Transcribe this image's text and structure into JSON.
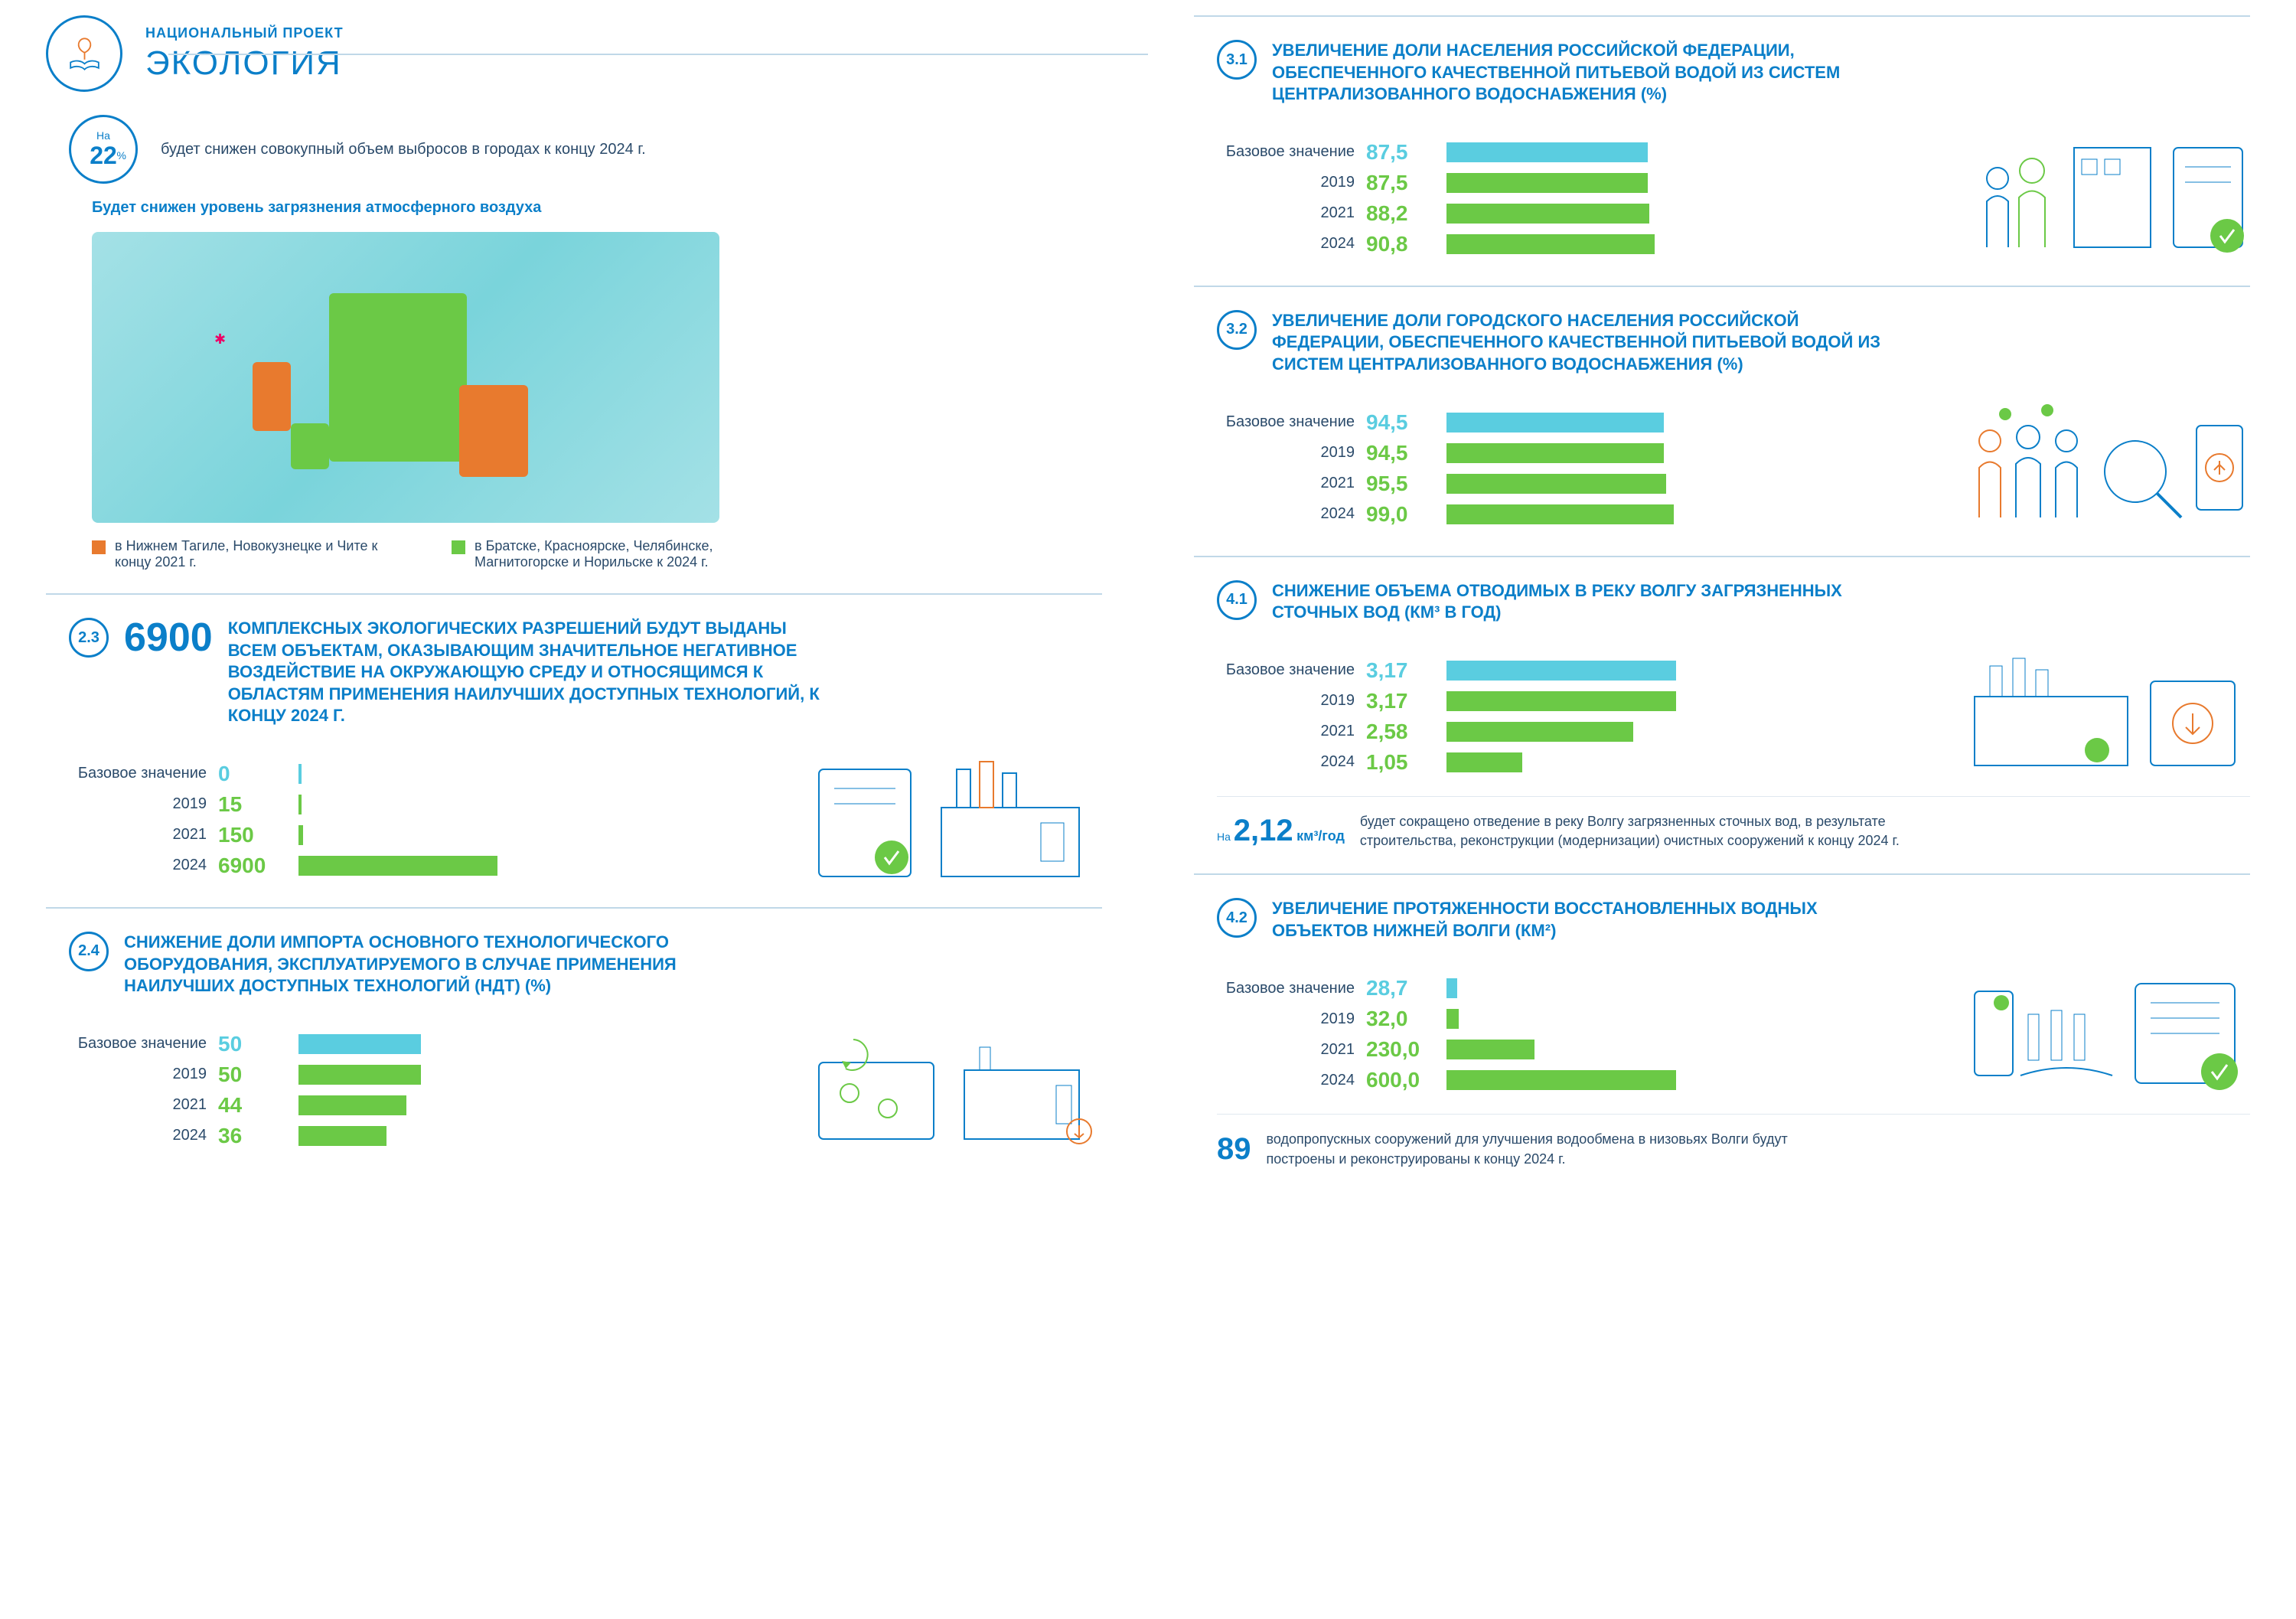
{
  "header": {
    "subtitle": "НАЦИОНАЛЬНЫЙ ПРОЕКТ",
    "title": "ЭКОЛОГИЯ"
  },
  "colors": {
    "blue": "#0b7fc9",
    "green": "#6bc946",
    "orange": "#e87a2e",
    "cyan": "#5acde0",
    "text": "#2a4a6a",
    "line": "#c0d8e8"
  },
  "hero": {
    "sup": "На",
    "value": "22",
    "unit": "%",
    "text": "будет снижен совокупный объем выбросов в городах к концу 2024 г."
  },
  "map": {
    "subtitle": "Будет снижен уровень загрязнения атмосферного воздуха",
    "legend": [
      {
        "color": "#e87a2e",
        "text": "в Нижнем Тагиле, Новокузнецке и Чите к концу 2021 г."
      },
      {
        "color": "#6bc946",
        "text": "в Братске, Красноярске, Челябинске, Магнитогорске и Норильске к 2024 г."
      }
    ]
  },
  "sections": [
    {
      "id": "2.3",
      "bignum": "6900",
      "title": "КОМПЛЕКСНЫХ ЭКОЛОГИЧЕСКИХ РАЗРЕШЕНИЙ БУДУТ ВЫДАНЫ ВСЕМ ОБЪЕКТАМ, ОКАЗЫВАЮЩИМ ЗНАЧИТЕЛЬНОЕ НЕГАТИВНОЕ ВОЗДЕЙСТВИЕ НА ОКРУЖАЮЩУЮ СРЕДУ И ОТНОСЯЩИМСЯ К ОБЛАСТЯМ ПРИМЕНЕНИЯ НАИЛУЧШИХ ДОСТУПНЫХ ТЕХНОЛОГИЙ, К КОНЦУ 2024 Г.",
      "bars": {
        "max": 6900,
        "track_w": 260,
        "rows": [
          {
            "label": "Базовое значение",
            "val": "0",
            "num": 0,
            "color": "#5acde0"
          },
          {
            "label": "2019",
            "val": "15",
            "num": 15,
            "color": "#6bc946"
          },
          {
            "label": "2021",
            "val": "150",
            "num": 150,
            "color": "#6bc946"
          },
          {
            "label": "2024",
            "val": "6900",
            "num": 6900,
            "color": "#6bc946"
          }
        ]
      },
      "illus": "factory"
    },
    {
      "id": "2.4",
      "title": "СНИЖЕНИЕ ДОЛИ ИМПОРТА ОСНОВНОГО ТЕХНОЛОГИЧЕСКОГО ОБОРУДОВАНИЯ, ЭКСПЛУАТИРУЕМОГО В СЛУЧАЕ ПРИМЕНЕНИЯ НАИЛУЧШИХ ДОСТУПНЫХ ТЕХНОЛОГИЙ (НДТ) (%)",
      "bars": {
        "max": 100,
        "track_w": 320,
        "rows": [
          {
            "label": "Базовое значение",
            "val": "50",
            "num": 50,
            "color": "#5acde0"
          },
          {
            "label": "2019",
            "val": "50",
            "num": 50,
            "color": "#6bc946"
          },
          {
            "label": "2021",
            "val": "44",
            "num": 44,
            "color": "#6bc946"
          },
          {
            "label": "2024",
            "val": "36",
            "num": 36,
            "color": "#6bc946"
          }
        ]
      },
      "illus": "recycle"
    },
    {
      "id": "3.1",
      "title": "УВЕЛИЧЕНИЕ ДОЛИ НАСЕЛЕНИЯ РОССИЙСКОЙ ФЕДЕРАЦИИ, ОБЕСПЕЧЕННОГО КАЧЕСТВЕННОЙ ПИТЬЕВОЙ ВОДОЙ ИЗ СИСТЕМ ЦЕНТРАЛИЗОВАННОГО ВОДОСНАБЖЕНИЯ (%)",
      "bars": {
        "max": 100,
        "track_w": 300,
        "rows": [
          {
            "label": "Базовое значение",
            "val": "87,5",
            "num": 87.5,
            "color": "#5acde0"
          },
          {
            "label": "2019",
            "val": "87,5",
            "num": 87.5,
            "color": "#6bc946"
          },
          {
            "label": "2021",
            "val": "88,2",
            "num": 88.2,
            "color": "#6bc946"
          },
          {
            "label": "2024",
            "val": "90,8",
            "num": 90.8,
            "color": "#6bc946"
          }
        ]
      },
      "illus": "family"
    },
    {
      "id": "3.2",
      "title": "УВЕЛИЧЕНИЕ ДОЛИ ГОРОДСКОГО НАСЕЛЕНИЯ РОССИЙСКОЙ ФЕДЕРАЦИИ, ОБЕСПЕЧЕННОГО КАЧЕСТВЕННОЙ ПИТЬЕВОЙ ВОДОЙ ИЗ СИСТЕМ ЦЕНТРАЛИЗОВАННОГО ВОДОСНАБЖЕНИЯ (%)",
      "bars": {
        "max": 100,
        "track_w": 300,
        "rows": [
          {
            "label": "Базовое значение",
            "val": "94,5",
            "num": 94.5,
            "color": "#5acde0"
          },
          {
            "label": "2019",
            "val": "94,5",
            "num": 94.5,
            "color": "#6bc946"
          },
          {
            "label": "2021",
            "val": "95,5",
            "num": 95.5,
            "color": "#6bc946"
          },
          {
            "label": "2024",
            "val": "99,0",
            "num": 99.0,
            "color": "#6bc946"
          }
        ]
      },
      "illus": "people"
    },
    {
      "id": "4.1",
      "title": "СНИЖЕНИЕ ОБЪЕМА ОТВОДИМЫХ В РЕКУ ВОЛГУ ЗАГРЯЗНЕННЫХ СТОЧНЫХ ВОД (КМ³ В ГОД)",
      "bars": {
        "max": 3.17,
        "track_w": 300,
        "rows": [
          {
            "label": "Базовое значение",
            "val": "3,17",
            "num": 3.17,
            "color": "#5acde0"
          },
          {
            "label": "2019",
            "val": "3,17",
            "num": 3.17,
            "color": "#6bc946"
          },
          {
            "label": "2021",
            "val": "2,58",
            "num": 2.58,
            "color": "#6bc946"
          },
          {
            "label": "2024",
            "val": "1,05",
            "num": 1.05,
            "color": "#6bc946"
          }
        ]
      },
      "illus": "plant",
      "callout": {
        "sup": "На",
        "num": "2,12",
        "unit": "км³/год",
        "text": "будет сокращено отведение в реку Волгу загрязненных сточных вод, в результате строительства, реконструкции (модернизации) очистных сооружений к концу 2024 г."
      }
    },
    {
      "id": "4.2",
      "title": "УВЕЛИЧЕНИЕ ПРОТЯЖЕННОСТИ ВОССТАНОВЛЕННЫХ ВОДНЫХ ОБЪЕКТОВ НИЖНЕЙ ВОЛГИ (КМ²)",
      "bars": {
        "max": 600,
        "track_w": 300,
        "rows": [
          {
            "label": "Базовое значение",
            "val": "28,7",
            "num": 28.7,
            "color": "#5acde0"
          },
          {
            "label": "2019",
            "val": "32,0",
            "num": 32.0,
            "color": "#6bc946"
          },
          {
            "label": "2021",
            "val": "230,0",
            "num": 230.0,
            "color": "#6bc946"
          },
          {
            "label": "2024",
            "val": "600,0",
            "num": 600.0,
            "color": "#6bc946"
          }
        ]
      },
      "illus": "dam",
      "callout": {
        "num": "89",
        "text": "водопропускных сооружений для улучшения водообмена в низовьях Волги будут построены и реконструированы к концу 2024 г."
      }
    }
  ]
}
